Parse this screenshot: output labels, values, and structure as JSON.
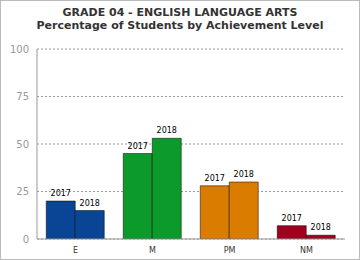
{
  "chart_data": {
    "type": "bar",
    "title": "GRADE 04 - ENGLISH LANGUAGE ARTS",
    "subtitle": "Percentage of Students by Achievement Level",
    "categories": [
      "E",
      "M",
      "PM",
      "NM"
    ],
    "series": [
      {
        "name": "2017",
        "values": [
          20,
          45,
          28,
          7
        ],
        "colors": [
          "#0a4595",
          "#0c9a2b",
          "#d97c00",
          "#a0001e"
        ]
      },
      {
        "name": "2018",
        "values": [
          15,
          53,
          30,
          2
        ],
        "colors": [
          "#0a4595",
          "#0c9a2b",
          "#d97c00",
          "#a0001e"
        ]
      }
    ],
    "ylim": [
      0,
      100
    ],
    "yticks": [
      0,
      25,
      50,
      75,
      100
    ],
    "grid": true,
    "data_labels": true
  }
}
